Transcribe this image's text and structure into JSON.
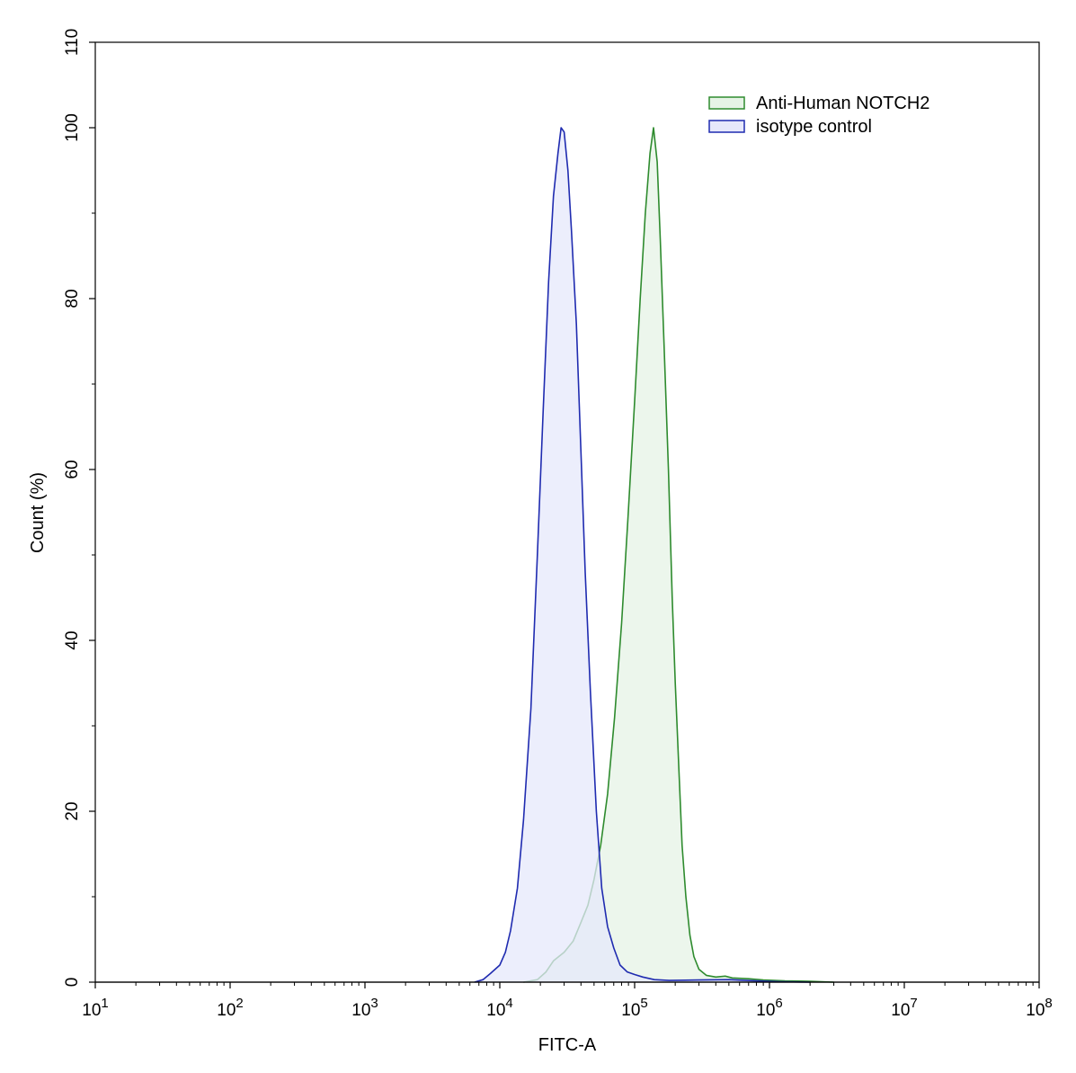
{
  "chart_data": {
    "type": "area",
    "title": "",
    "xlabel": "FITC-A",
    "ylabel": "Count  (%)",
    "xscale": "log",
    "xlim": [
      10,
      100000000
    ],
    "ylim": [
      0,
      110
    ],
    "x_ticks": [
      {
        "value": 10,
        "base": "10",
        "exp": "1"
      },
      {
        "value": 100,
        "base": "10",
        "exp": "2"
      },
      {
        "value": 1000,
        "base": "10",
        "exp": "3"
      },
      {
        "value": 10000,
        "base": "10",
        "exp": "4"
      },
      {
        "value": 100000,
        "base": "10",
        "exp": "5"
      },
      {
        "value": 1000000,
        "base": "10",
        "exp": "6"
      },
      {
        "value": 10000000,
        "base": "10",
        "exp": "7"
      },
      {
        "value": 100000000,
        "base": "10",
        "exp": "8"
      }
    ],
    "y_ticks": [
      {
        "value": 0,
        "label": "0"
      },
      {
        "value": 20,
        "label": "20"
      },
      {
        "value": 40,
        "label": "40"
      },
      {
        "value": 60,
        "label": "60"
      },
      {
        "value": 80,
        "label": "80"
      },
      {
        "value": 100,
        "label": "100"
      },
      {
        "value": 110,
        "label": "110"
      }
    ],
    "grid": false,
    "legend_position": "top-right",
    "series": [
      {
        "name": "Anti-Human NOTCH2",
        "stroke": "#2e8b2e",
        "fill": "#e6f3e6",
        "points": [
          [
            15000,
            0
          ],
          [
            19000,
            0.3
          ],
          [
            22000,
            1.2
          ],
          [
            25000,
            2.5
          ],
          [
            30000,
            3.5
          ],
          [
            35000,
            4.8
          ],
          [
            40000,
            7
          ],
          [
            45000,
            9
          ],
          [
            50000,
            12
          ],
          [
            56000,
            16
          ],
          [
            63000,
            22
          ],
          [
            71000,
            31
          ],
          [
            80000,
            42
          ],
          [
            89000,
            54
          ],
          [
            100000,
            68
          ],
          [
            110000,
            80
          ],
          [
            120000,
            90
          ],
          [
            130000,
            97
          ],
          [
            138000,
            100
          ],
          [
            147000,
            96
          ],
          [
            155000,
            87
          ],
          [
            165000,
            75
          ],
          [
            178000,
            60
          ],
          [
            190000,
            45
          ],
          [
            200000,
            35
          ],
          [
            214000,
            24
          ],
          [
            225000,
            16
          ],
          [
            240000,
            10
          ],
          [
            257000,
            5.5
          ],
          [
            275000,
            3
          ],
          [
            300000,
            1.5
          ],
          [
            340000,
            0.8
          ],
          [
            400000,
            0.6
          ],
          [
            470000,
            0.7
          ],
          [
            530000,
            0.5
          ],
          [
            700000,
            0.4
          ],
          [
            900000,
            0.25
          ],
          [
            1300000,
            0.15
          ],
          [
            2000000,
            0.1
          ],
          [
            3000000,
            0
          ]
        ]
      },
      {
        "name": "isotype control",
        "stroke": "#1f2bb0",
        "fill": "#e6e8fb",
        "points": [
          [
            6500,
            0
          ],
          [
            7500,
            0.3
          ],
          [
            8500,
            1
          ],
          [
            10000,
            2
          ],
          [
            11000,
            3.5
          ],
          [
            12000,
            6
          ],
          [
            13500,
            11
          ],
          [
            15000,
            19
          ],
          [
            17000,
            32
          ],
          [
            19000,
            50
          ],
          [
            21000,
            67
          ],
          [
            23000,
            82
          ],
          [
            25000,
            92
          ],
          [
            27000,
            97
          ],
          [
            28500,
            100
          ],
          [
            30000,
            99.5
          ],
          [
            32000,
            95
          ],
          [
            34000,
            88
          ],
          [
            37000,
            77
          ],
          [
            40000,
            62
          ],
          [
            43000,
            48
          ],
          [
            47000,
            34
          ],
          [
            52000,
            20
          ],
          [
            57000,
            11
          ],
          [
            63000,
            6.5
          ],
          [
            70000,
            4
          ],
          [
            78000,
            2
          ],
          [
            88000,
            1.2
          ],
          [
            100000,
            0.9
          ],
          [
            115000,
            0.6
          ],
          [
            140000,
            0.3
          ],
          [
            180000,
            0.2
          ],
          [
            300000,
            0.25
          ],
          [
            500000,
            0.3
          ],
          [
            800000,
            0.15
          ],
          [
            1200000,
            0.05
          ],
          [
            2000000,
            0
          ]
        ]
      }
    ]
  }
}
